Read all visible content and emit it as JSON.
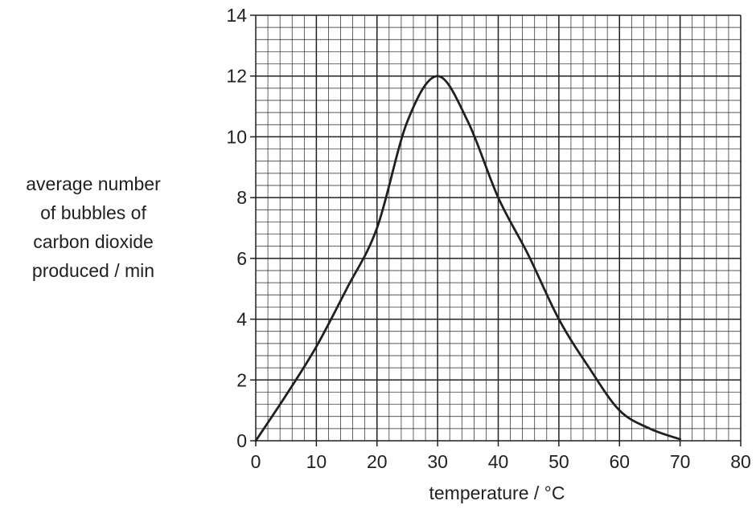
{
  "chart_data": {
    "type": "line",
    "xlabel": "temperature / °C",
    "ylabel_lines": [
      "average number",
      "of bubbles of",
      "carbon dioxide",
      "produced / min"
    ],
    "xlim": [
      0,
      80
    ],
    "ylim": [
      0,
      14
    ],
    "x_ticks": [
      0,
      10,
      20,
      30,
      40,
      50,
      60,
      70,
      80
    ],
    "y_ticks": [
      0,
      2,
      4,
      6,
      8,
      10,
      12,
      14
    ],
    "grid": true,
    "minor_grid_step": {
      "x": 2,
      "y": 0.4
    },
    "series": [
      {
        "x": [
          0,
          5,
          10,
          15,
          20,
          25,
          30,
          35,
          40,
          45,
          50,
          55,
          60,
          65,
          70
        ],
        "y": [
          0,
          1.5,
          3.1,
          5.0,
          7.0,
          10.5,
          12.0,
          10.5,
          8.0,
          6.1,
          4.0,
          2.4,
          1.0,
          0.4,
          0.05
        ]
      }
    ],
    "line_color": "#231f20"
  }
}
